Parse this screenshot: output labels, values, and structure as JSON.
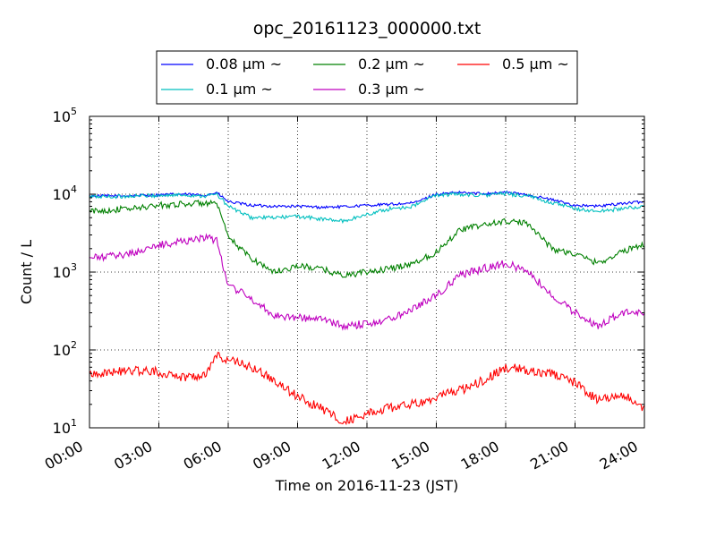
{
  "chart_data": {
    "type": "line",
    "title": "opc_20161123_000000.txt",
    "xlabel": "Time on 2016-11-23 (JST)",
    "ylabel": "Count / L",
    "yscale": "log",
    "grid": true,
    "legend_position": "top-center",
    "xlim": [
      0,
      24
    ],
    "ylim": [
      10,
      100000
    ],
    "x_tick_labels": [
      "00:00",
      "03:00",
      "06:00",
      "09:00",
      "12:00",
      "15:00",
      "18:00",
      "21:00",
      "24:00"
    ],
    "y_tick_labels": [
      {
        "base": "10",
        "exp": "1",
        "value": 10
      },
      {
        "base": "10",
        "exp": "2",
        "value": 100
      },
      {
        "base": "10",
        "exp": "3",
        "value": 1000
      },
      {
        "base": "10",
        "exp": "4",
        "value": 10000
      },
      {
        "base": "10",
        "exp": "5",
        "value": 100000
      }
    ],
    "x_hours": [
      0,
      1,
      2,
      3,
      4,
      5,
      5.5,
      6,
      7,
      8,
      9,
      10,
      11,
      12,
      13,
      14,
      15,
      16,
      17,
      18,
      19,
      20,
      21,
      22,
      23,
      24
    ],
    "series": [
      {
        "name": "0.08 μm ~",
        "color": "#0000ff",
        "values": [
          9500,
          9500,
          9600,
          9800,
          10000,
          9700,
          10500,
          8000,
          7200,
          7000,
          7000,
          6800,
          6900,
          7200,
          7400,
          7700,
          10000,
          10500,
          10200,
          10600,
          9800,
          8500,
          7200,
          7000,
          7600,
          8000
        ]
      },
      {
        "name": "0.1 μm ~",
        "color": "#00bfbf",
        "values": [
          9300,
          9300,
          9500,
          9600,
          9800,
          9500,
          10000,
          7000,
          5000,
          5000,
          5200,
          4800,
          4500,
          5500,
          6500,
          7000,
          9800,
          10000,
          9700,
          10200,
          9400,
          7800,
          6500,
          6000,
          6500,
          7000
        ]
      },
      {
        "name": "0.2 μm ~",
        "color": "#008000",
        "values": [
          6000,
          6300,
          6600,
          7200,
          7500,
          7700,
          7500,
          2800,
          1500,
          1000,
          1200,
          1100,
          900,
          1000,
          1100,
          1300,
          1800,
          3500,
          4000,
          4500,
          4200,
          2000,
          1700,
          1300,
          1800,
          2300
        ]
      },
      {
        "name": "0.3 μm ~",
        "color": "#bf00bf",
        "values": [
          1500,
          1600,
          1800,
          2200,
          2500,
          2800,
          2500,
          700,
          450,
          280,
          260,
          250,
          200,
          220,
          250,
          350,
          500,
          900,
          1100,
          1300,
          1000,
          500,
          300,
          200,
          300,
          300
        ]
      },
      {
        "name": "0.5 μm ~",
        "color": "#ff0000",
        "values": [
          50,
          52,
          55,
          52,
          45,
          48,
          85,
          75,
          60,
          40,
          25,
          18,
          12,
          15,
          18,
          20,
          25,
          30,
          40,
          60,
          55,
          50,
          38,
          22,
          28,
          17
        ]
      }
    ]
  }
}
